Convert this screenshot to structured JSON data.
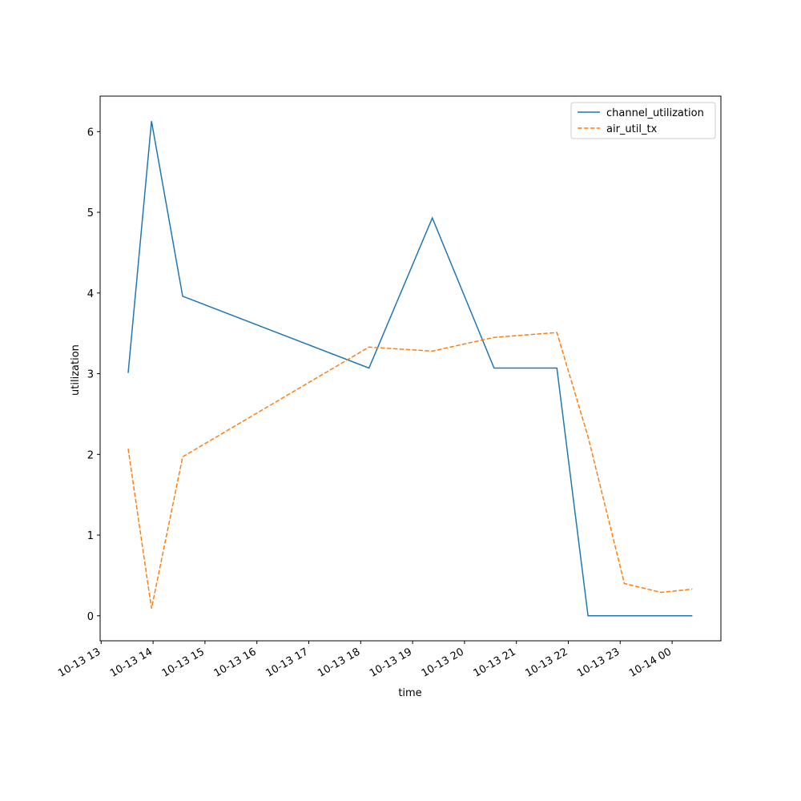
{
  "chart_data": {
    "type": "line",
    "x_label": "time",
    "y_label": "utilization",
    "x": [
      13.52,
      13.97,
      14.57,
      18.16,
      19.38,
      20.57,
      21.78,
      22.38,
      23.08,
      23.79,
      24.39
    ],
    "series": [
      {
        "name": "channel_utilization",
        "color": "#1f77b4",
        "dash": "solid",
        "values": [
          3.01,
          6.13,
          3.96,
          3.07,
          4.93,
          3.07,
          3.07,
          0,
          0,
          0,
          0
        ]
      },
      {
        "name": "air_util_tx",
        "color": "#ff7f0e",
        "dash": "dashed",
        "values": [
          2.07,
          0.09,
          1.97,
          3.33,
          3.28,
          3.45,
          3.51,
          2.22,
          0.4,
          0.29,
          0.33
        ]
      }
    ],
    "xlim": [
      12.98,
      24.94
    ],
    "xticks": [
      {
        "value": 13,
        "label": "10-13 13"
      },
      {
        "value": 14,
        "label": "10-13 14"
      },
      {
        "value": 15,
        "label": "10-13 15"
      },
      {
        "value": 16,
        "label": "10-13 16"
      },
      {
        "value": 17,
        "label": "10-13 17"
      },
      {
        "value": 18,
        "label": "10-13 18"
      },
      {
        "value": 19,
        "label": "10-13 19"
      },
      {
        "value": 20,
        "label": "10-13 20"
      },
      {
        "value": 21,
        "label": "10-13 21"
      },
      {
        "value": 22,
        "label": "10-13 22"
      },
      {
        "value": 23,
        "label": "10-13 23"
      },
      {
        "value": 24,
        "label": "10-14 00"
      }
    ],
    "ylim": [
      -0.31,
      6.44
    ],
    "yticks": [
      0,
      1,
      2,
      3,
      4,
      5,
      6
    ],
    "legend": "upper right",
    "grid": false
  }
}
